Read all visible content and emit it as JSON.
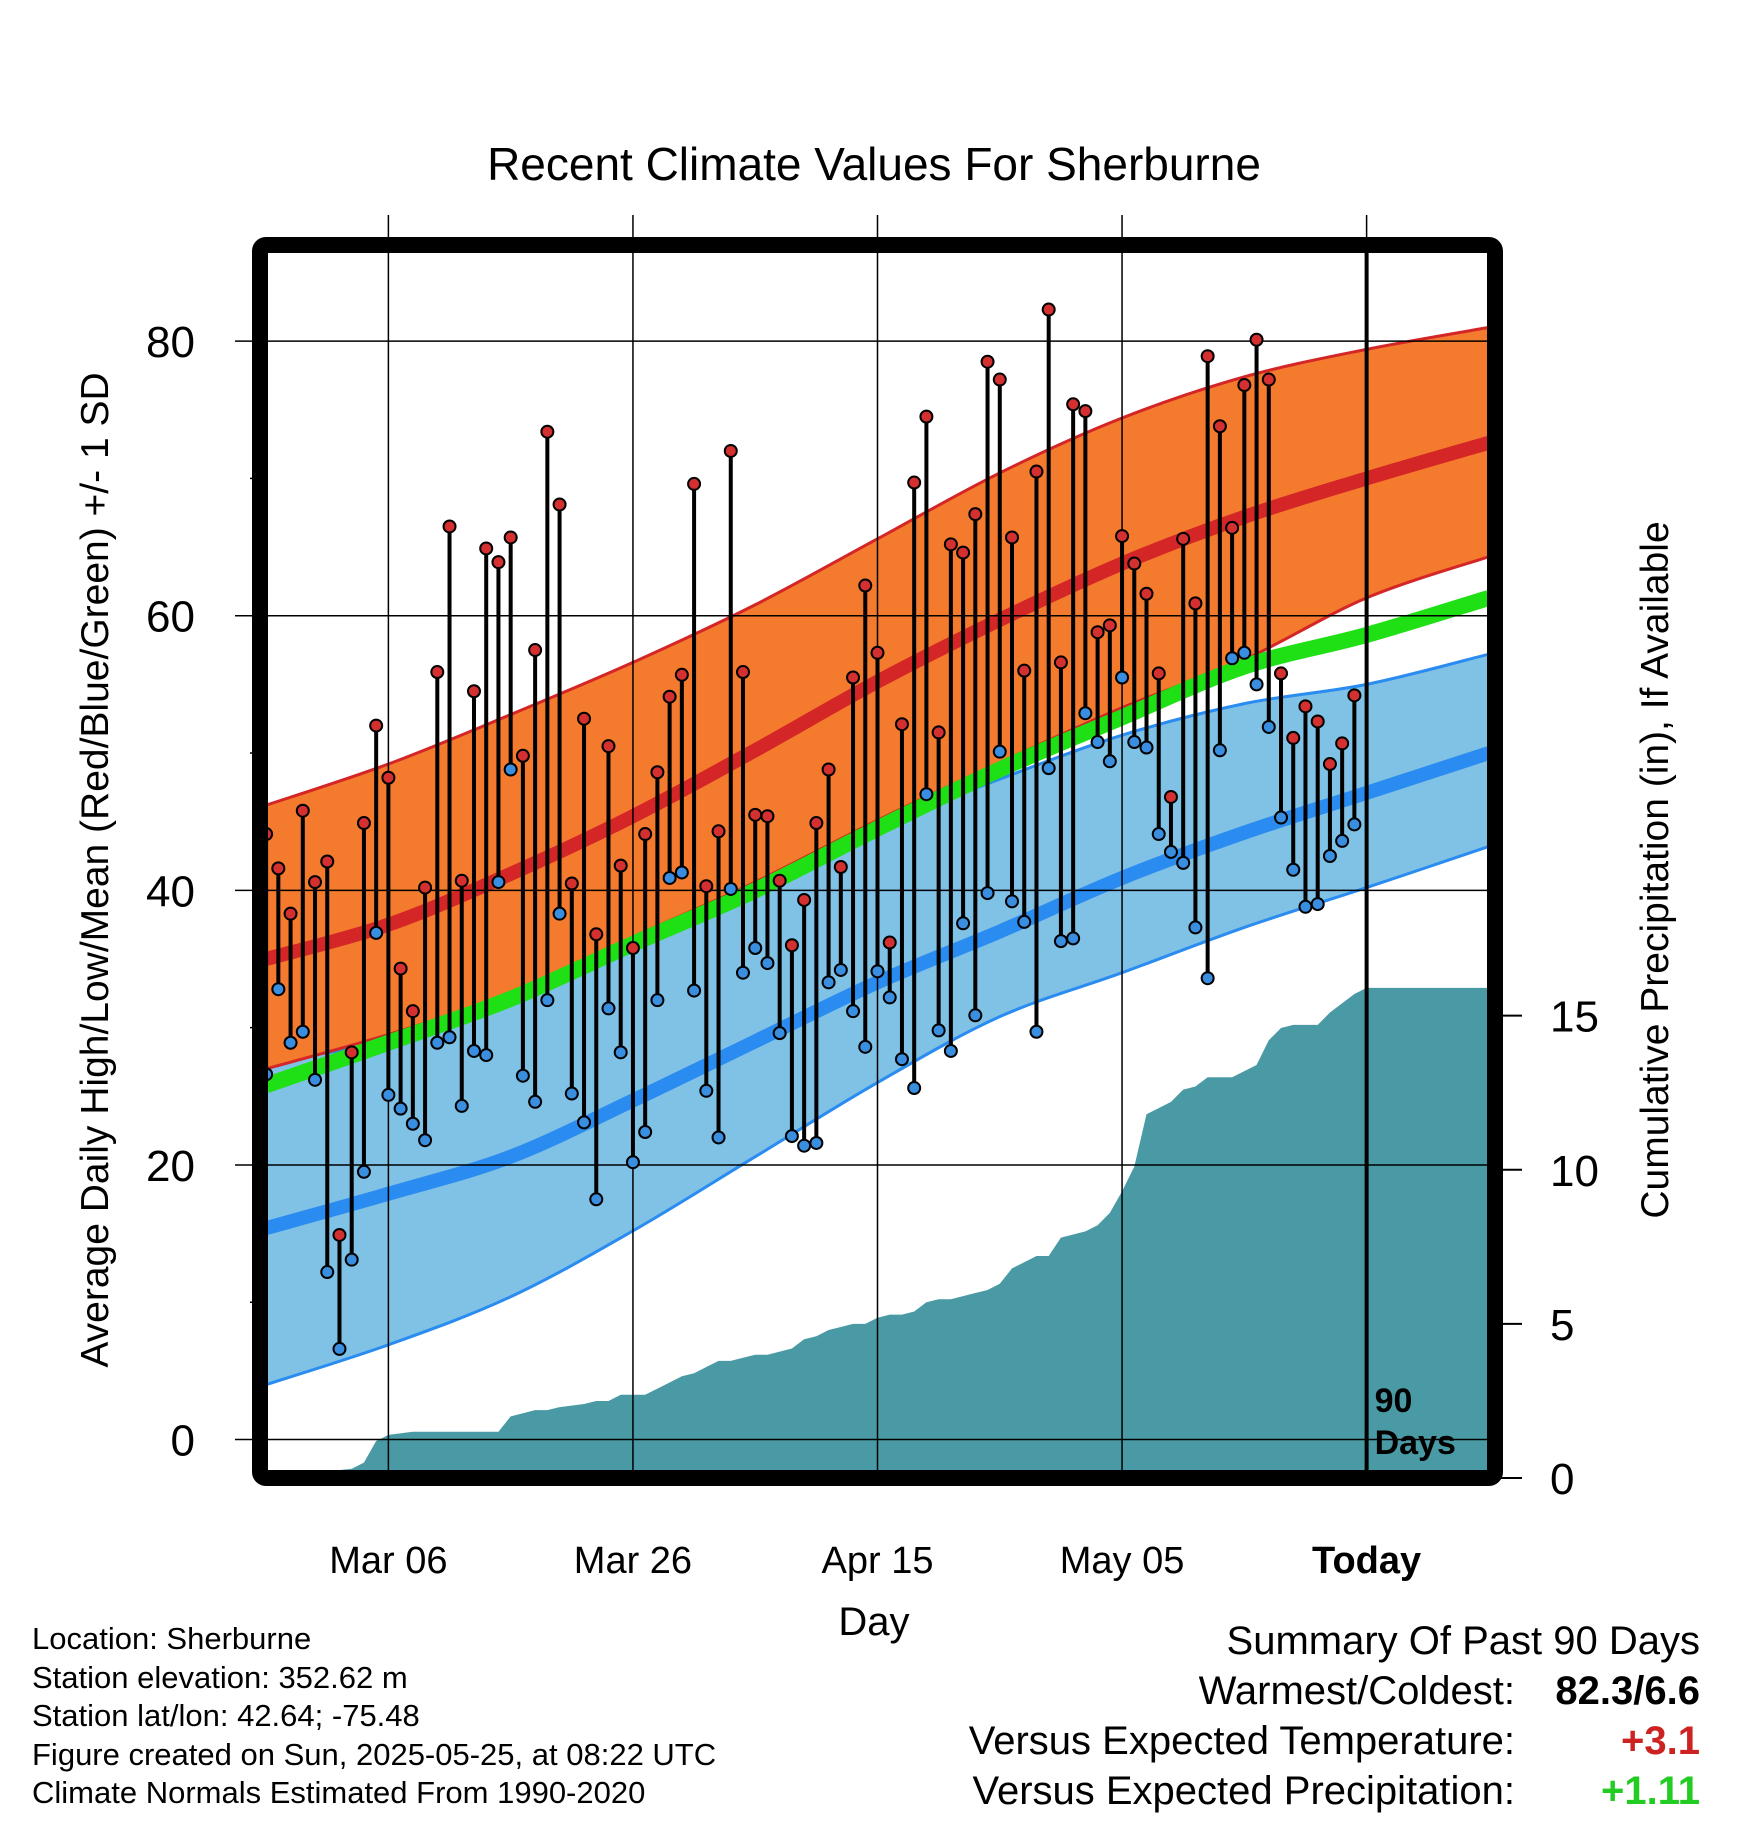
{
  "chart_data": {
    "type": "line",
    "title": "Recent Climate Values For Sherburne",
    "xlabel": "Day",
    "ylabel": "Average Daily High/Low/Mean (Red/Blue/Green) +/- 1 SD",
    "ylabel_right": "Cumulative Precipitation (in), If Available",
    "x_tick_labels": [
      "Mar 06",
      "Mar 26",
      "Apr 15",
      "May 05",
      "Today"
    ],
    "x_tick_days": [
      10,
      30,
      50,
      70,
      90
    ],
    "y_ticks": [
      0,
      20,
      40,
      60,
      80
    ],
    "y_tick_labels": [
      "0",
      "20",
      "40",
      "60",
      "80"
    ],
    "ylim": [
      -2.8,
      87
    ],
    "y2_ticks": [
      0,
      5,
      10,
      15
    ],
    "y2_tick_labels": [
      "0",
      "5",
      "10",
      "15"
    ],
    "y2lim": [
      0,
      40
    ],
    "x_range": [
      -0.5,
      100.5
    ],
    "today_label": "90 Days",
    "today_day": 90,
    "grid": true,
    "colors": {
      "high_band": "#f47a2e",
      "high_normal": "#d42626",
      "low_band": "#80c1e6",
      "low_normal": "#2a8cf0",
      "mean_normal": "#1ee014",
      "precip": "#4a9aa5",
      "high_point": "#d43030",
      "low_point": "#3a8ee0"
    },
    "normal_high": {
      "x": [
        0,
        10,
        20,
        30,
        40,
        50,
        60,
        70,
        80,
        90,
        100
      ],
      "mean": [
        35.0,
        37.5,
        41.2,
        45.4,
        50.2,
        55.2,
        59.7,
        63.8,
        67.2,
        70.0,
        72.6
      ],
      "upper": [
        46.2,
        49.2,
        52.8,
        56.6,
        60.8,
        65.6,
        70.4,
        74.4,
        77.4,
        79.4,
        81.0
      ],
      "lower": [
        27.0,
        29.5,
        32.5,
        36.6,
        40.6,
        45.1,
        49.3,
        53.3,
        56.8,
        61.3,
        64.3
      ]
    },
    "normal_mean": {
      "x": [
        0,
        10,
        20,
        30,
        40,
        50,
        60,
        70,
        80,
        90,
        100
      ],
      "values": [
        25.8,
        28.9,
        32.1,
        36.1,
        40.0,
        44.5,
        48.8,
        52.6,
        56.3,
        58.6,
        61.3
      ]
    },
    "normal_low": {
      "x": [
        0,
        10,
        20,
        30,
        40,
        50,
        60,
        70,
        80,
        90,
        100
      ],
      "mean": [
        15.4,
        17.9,
        20.6,
        24.7,
        29.0,
        33.3,
        37.0,
        40.9,
        44.2,
        47.1,
        50.0
      ],
      "upper": [
        27.5,
        29.0,
        31.8,
        36.0,
        40.4,
        44.6,
        48.1,
        51.3,
        53.6,
        55.0,
        57.2
      ],
      "lower": [
        4.0,
        6.9,
        10.4,
        15.2,
        20.6,
        26.0,
        30.8,
        34.0,
        37.3,
        40.2,
        43.2
      ]
    },
    "days": [
      0,
      1,
      2,
      3,
      4,
      5,
      6,
      7,
      8,
      9,
      10,
      11,
      12,
      13,
      14,
      15,
      16,
      17,
      18,
      19,
      20,
      21,
      22,
      23,
      24,
      25,
      26,
      27,
      28,
      29,
      30,
      31,
      32,
      33,
      34,
      35,
      36,
      37,
      38,
      39,
      40,
      41,
      42,
      43,
      44,
      45,
      46,
      47,
      48,
      49,
      50,
      51,
      52,
      53,
      54,
      55,
      56,
      57,
      58,
      59,
      60,
      61,
      62,
      63,
      64,
      65,
      66,
      67,
      68,
      69,
      70,
      71,
      72,
      73,
      74,
      75,
      76,
      77,
      78,
      79,
      80,
      81,
      82,
      83,
      84,
      85,
      86,
      87,
      88,
      89
    ],
    "daily_high": [
      44.1,
      41.6,
      38.3,
      45.8,
      40.6,
      42.1,
      14.9,
      28.2,
      44.9,
      52.0,
      48.2,
      34.3,
      31.2,
      40.2,
      55.9,
      66.5,
      40.7,
      54.5,
      64.9,
      63.9,
      65.7,
      49.8,
      57.5,
      73.4,
      68.1,
      40.5,
      52.5,
      36.8,
      50.5,
      41.8,
      35.8,
      44.1,
      48.6,
      54.1,
      55.7,
      69.6,
      40.3,
      44.3,
      72.0,
      55.9,
      45.5,
      45.4,
      40.7,
      36.0,
      39.3,
      44.9,
      48.8,
      41.7,
      55.5,
      62.2,
      57.3,
      36.2,
      52.1,
      69.7,
      74.5,
      51.5,
      65.2,
      64.6,
      67.4,
      78.5,
      77.2,
      65.7,
      56.0,
      70.5,
      82.3,
      56.6,
      75.4,
      74.9,
      58.8,
      59.3,
      65.8,
      63.8,
      61.6,
      55.8,
      46.8,
      65.6,
      60.9,
      78.9,
      73.8,
      66.4,
      76.8,
      80.1,
      77.2,
      55.8,
      51.1,
      53.4,
      52.3,
      49.2,
      50.7,
      54.2
    ],
    "daily_low": [
      26.6,
      32.8,
      28.9,
      29.7,
      26.2,
      12.2,
      6.6,
      13.1,
      19.5,
      36.9,
      25.1,
      24.1,
      23.0,
      21.8,
      28.9,
      29.3,
      24.3,
      28.3,
      28.0,
      40.6,
      48.8,
      26.5,
      24.6,
      32.0,
      38.3,
      25.2,
      23.1,
      17.5,
      31.4,
      28.2,
      20.2,
      22.4,
      32.0,
      40.9,
      41.3,
      32.7,
      25.4,
      22.0,
      40.1,
      34.0,
      35.8,
      34.7,
      29.6,
      22.1,
      21.4,
      21.6,
      33.3,
      34.2,
      31.2,
      28.6,
      34.1,
      32.2,
      27.7,
      25.6,
      47.0,
      29.8,
      28.3,
      37.6,
      30.9,
      39.8,
      50.1,
      39.2,
      37.7,
      29.7,
      48.9,
      36.3,
      36.5,
      52.9,
      50.8,
      49.4,
      55.5,
      50.8,
      50.4,
      44.1,
      42.8,
      42.0,
      37.3,
      33.6,
      50.2,
      56.9,
      57.3,
      55.0,
      51.9,
      45.3,
      41.5,
      38.8,
      39.0,
      42.5,
      43.6,
      44.8
    ],
    "precip_cumulative": {
      "x": [
        0,
        7,
        8,
        9,
        10,
        12,
        14,
        16,
        18,
        19,
        20,
        21,
        22,
        23,
        24,
        26,
        27,
        28,
        29,
        30,
        31,
        32,
        33,
        34,
        35,
        36,
        37,
        38,
        39,
        40,
        41,
        42,
        43,
        44,
        45,
        46,
        47,
        48,
        49,
        50,
        51,
        52,
        53,
        54,
        55,
        56,
        57,
        58,
        59,
        60,
        61,
        62,
        63,
        64,
        65,
        66,
        67,
        68,
        69,
        70,
        71,
        72,
        73,
        74,
        75,
        76,
        77,
        78,
        79,
        80,
        81,
        82,
        83,
        84,
        85,
        86,
        87,
        88,
        89,
        90,
        100
      ],
      "values": [
        0.0,
        0.3,
        0.5,
        1.2,
        1.4,
        1.5,
        1.5,
        1.5,
        1.5,
        1.5,
        2.0,
        2.1,
        2.2,
        2.2,
        2.3,
        2.4,
        2.5,
        2.5,
        2.7,
        2.7,
        2.7,
        2.9,
        3.1,
        3.3,
        3.4,
        3.6,
        3.8,
        3.8,
        3.9,
        4.0,
        4.0,
        4.1,
        4.2,
        4.5,
        4.6,
        4.8,
        4.9,
        5.0,
        5.0,
        5.2,
        5.3,
        5.3,
        5.4,
        5.7,
        5.8,
        5.8,
        5.9,
        6.0,
        6.1,
        6.3,
        6.8,
        7.0,
        7.2,
        7.2,
        7.8,
        7.9,
        8.0,
        8.2,
        8.6,
        9.3,
        10.1,
        11.8,
        12.0,
        12.2,
        12.6,
        12.7,
        13.0,
        13.0,
        13.0,
        13.2,
        13.4,
        14.2,
        14.6,
        14.7,
        14.7,
        14.7,
        15.1,
        15.4,
        15.7,
        15.9,
        15.9
      ]
    }
  },
  "info": {
    "location": "Location: Sherburne",
    "elevation": "Station elevation: 352.62 m",
    "latlon": "Station lat/lon: 42.64; -75.48",
    "created": "Figure created on Sun, 2025-05-25, at 08:22 UTC",
    "normals": "Climate Normals Estimated From 1990-2020"
  },
  "summary": {
    "title": "Summary Of Past 90 Days",
    "warmest_coldest_label": "Warmest/Coldest:",
    "warmest_coldest_value": "82.3/6.6",
    "temp_label": "Versus Expected Temperature:",
    "temp_value": "+3.1",
    "temp_color": "#cc2222",
    "precip_label": "Versus Expected Precipitation:",
    "precip_value": "+1.11",
    "precip_color": "#22cc22"
  }
}
